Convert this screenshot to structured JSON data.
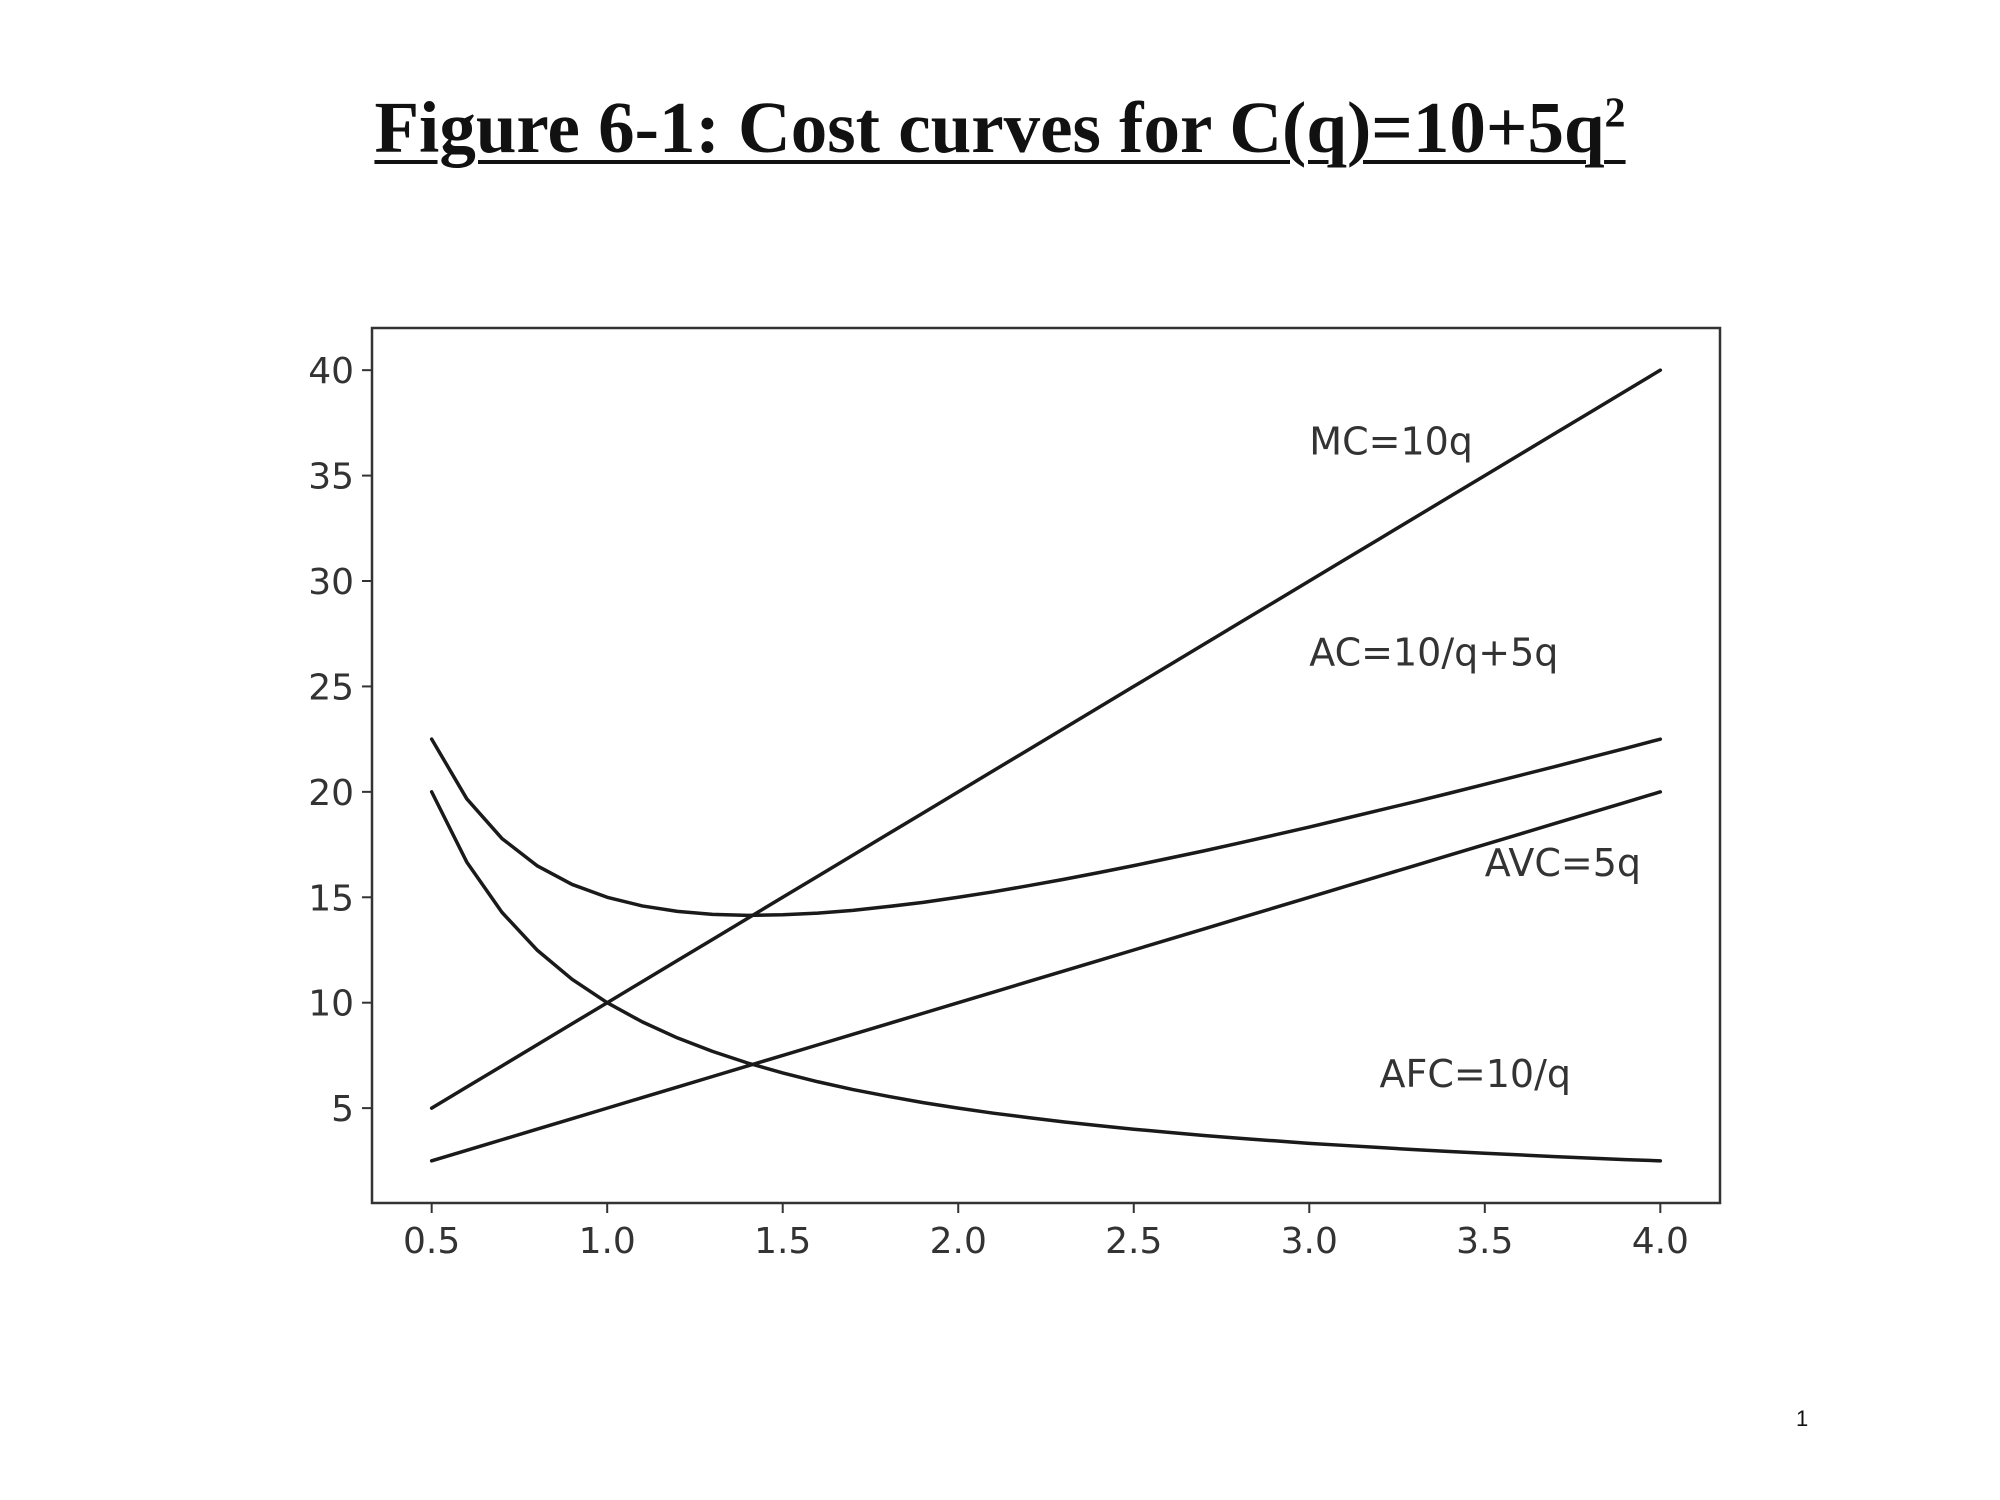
{
  "slide": {
    "title_main": "Figure 6-1: Cost curves for C(q)=10+5q",
    "title_superscript": "2",
    "page_number": "1"
  },
  "chart_data": {
    "type": "line",
    "title": "Figure 6-1: Cost curves for C(q)=10+5q²",
    "xlabel": "",
    "ylabel": "",
    "xlim": [
      0.33,
      4.17
    ],
    "ylim": [
      0.5,
      42.0
    ],
    "x_ticks": [
      0.5,
      1.0,
      1.5,
      2.0,
      2.5,
      3.0,
      3.5,
      4.0
    ],
    "x_tick_labels": [
      "0.5",
      "1.0",
      "1.5",
      "2.0",
      "2.5",
      "3.0",
      "3.5",
      "4.0"
    ],
    "y_ticks": [
      5,
      10,
      15,
      20,
      25,
      30,
      35,
      40
    ],
    "y_tick_labels": [
      "5",
      "10",
      "15",
      "20",
      "25",
      "30",
      "35",
      "40"
    ],
    "grid": false,
    "legend": "none",
    "line_color": "#1a1a1a",
    "x": [
      0.5,
      0.6,
      0.7,
      0.8,
      0.9,
      1.0,
      1.1,
      1.2,
      1.3,
      1.4,
      1.5,
      1.6,
      1.7,
      1.8,
      1.9,
      2.0,
      2.1,
      2.2,
      2.3,
      2.4,
      2.5,
      2.6,
      2.7,
      2.8,
      2.9,
      3.0,
      3.1,
      3.2,
      3.3,
      3.4,
      3.5,
      3.6,
      3.7,
      3.8,
      3.9,
      4.0
    ],
    "series": [
      {
        "name": "MC=10q",
        "values": [
          5.0,
          6.0,
          7.0,
          8.0,
          9.0,
          10.0,
          11.0,
          12.0,
          13.0,
          14.0,
          15.0,
          16.0,
          17.0,
          18.0,
          19.0,
          20.0,
          21.0,
          22.0,
          23.0,
          24.0,
          25.0,
          26.0,
          27.0,
          28.0,
          29.0,
          30.0,
          31.0,
          32.0,
          33.0,
          34.0,
          35.0,
          36.0,
          37.0,
          38.0,
          39.0,
          40.0
        ]
      },
      {
        "name": "AC=10/q+5q",
        "values": [
          22.5,
          19.67,
          17.79,
          16.5,
          15.61,
          15.0,
          14.59,
          14.33,
          14.19,
          14.14,
          14.17,
          14.25,
          14.38,
          14.56,
          14.76,
          15.0,
          15.26,
          15.55,
          15.85,
          16.17,
          16.5,
          16.85,
          17.2,
          17.57,
          17.95,
          18.33,
          18.73,
          19.13,
          19.53,
          19.94,
          20.36,
          20.78,
          21.2,
          21.63,
          22.06,
          22.5
        ]
      },
      {
        "name": "AVC=5q",
        "values": [
          2.5,
          3.0,
          3.5,
          4.0,
          4.5,
          5.0,
          5.5,
          6.0,
          6.5,
          7.0,
          7.5,
          8.0,
          8.5,
          9.0,
          9.5,
          10.0,
          10.5,
          11.0,
          11.5,
          12.0,
          12.5,
          13.0,
          13.5,
          14.0,
          14.5,
          15.0,
          15.5,
          16.0,
          16.5,
          17.0,
          17.5,
          18.0,
          18.5,
          19.0,
          19.5,
          20.0
        ]
      },
      {
        "name": "AFC=10/q",
        "values": [
          20.0,
          16.67,
          14.29,
          12.5,
          11.11,
          10.0,
          9.09,
          8.33,
          7.69,
          7.14,
          6.67,
          6.25,
          5.88,
          5.56,
          5.26,
          5.0,
          4.76,
          4.55,
          4.35,
          4.17,
          4.0,
          3.85,
          3.7,
          3.57,
          3.45,
          3.33,
          3.23,
          3.13,
          3.03,
          2.94,
          2.86,
          2.78,
          2.7,
          2.63,
          2.56,
          2.5
        ]
      }
    ],
    "annotations": [
      {
        "text": "MC=10q",
        "x": 3.0,
        "y": 36.0
      },
      {
        "text": "AC=10/q+5q",
        "x": 3.0,
        "y": 26.0
      },
      {
        "text": "AVC=5q",
        "x": 3.5,
        "y": 16.0
      },
      {
        "text": "AFC=10/q",
        "x": 3.2,
        "y": 6.0
      }
    ]
  }
}
